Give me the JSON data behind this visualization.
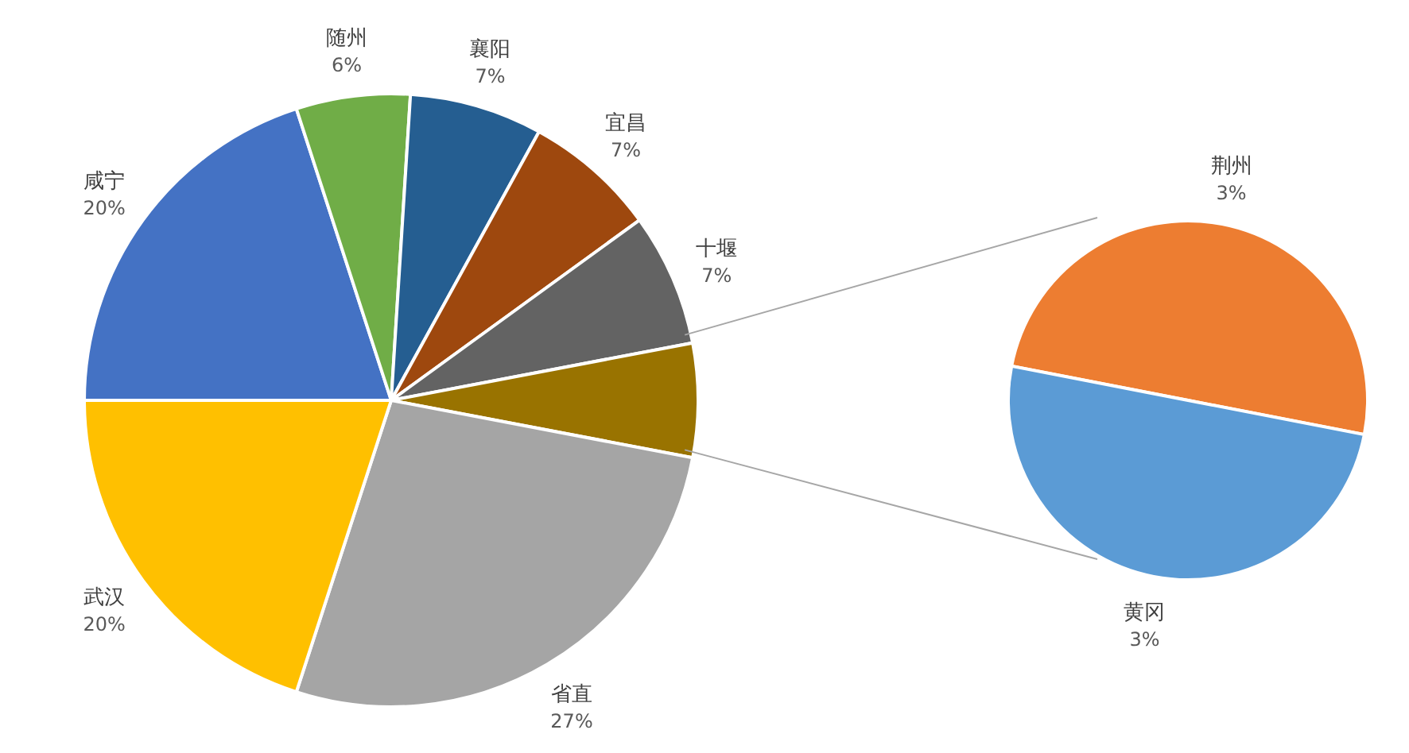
{
  "chart_data": [
    {
      "type": "pie",
      "categories": [
        "咸宁",
        "随州",
        "襄阳",
        "宜昌",
        "十堰",
        null,
        "省直",
        "武汉"
      ],
      "values": [
        20,
        6,
        7,
        7,
        7,
        6,
        27,
        20
      ],
      "colors": [
        "#4472c4",
        "#70ad47",
        "#255e91",
        "#9e480e",
        "#636363",
        "#997300",
        "#a5a5a5",
        "#ffc000"
      ],
      "value_labels": [
        "20%",
        "6%",
        "7%",
        "7%",
        "7%",
        null,
        "27%",
        "20%"
      ]
    },
    {
      "type": "pie",
      "categories": [
        "荆州",
        "黄冈"
      ],
      "values": [
        3,
        3
      ],
      "colors": [
        "#ed7d31",
        "#5b9bd5"
      ],
      "value_labels": [
        "3%",
        "3%"
      ]
    }
  ]
}
